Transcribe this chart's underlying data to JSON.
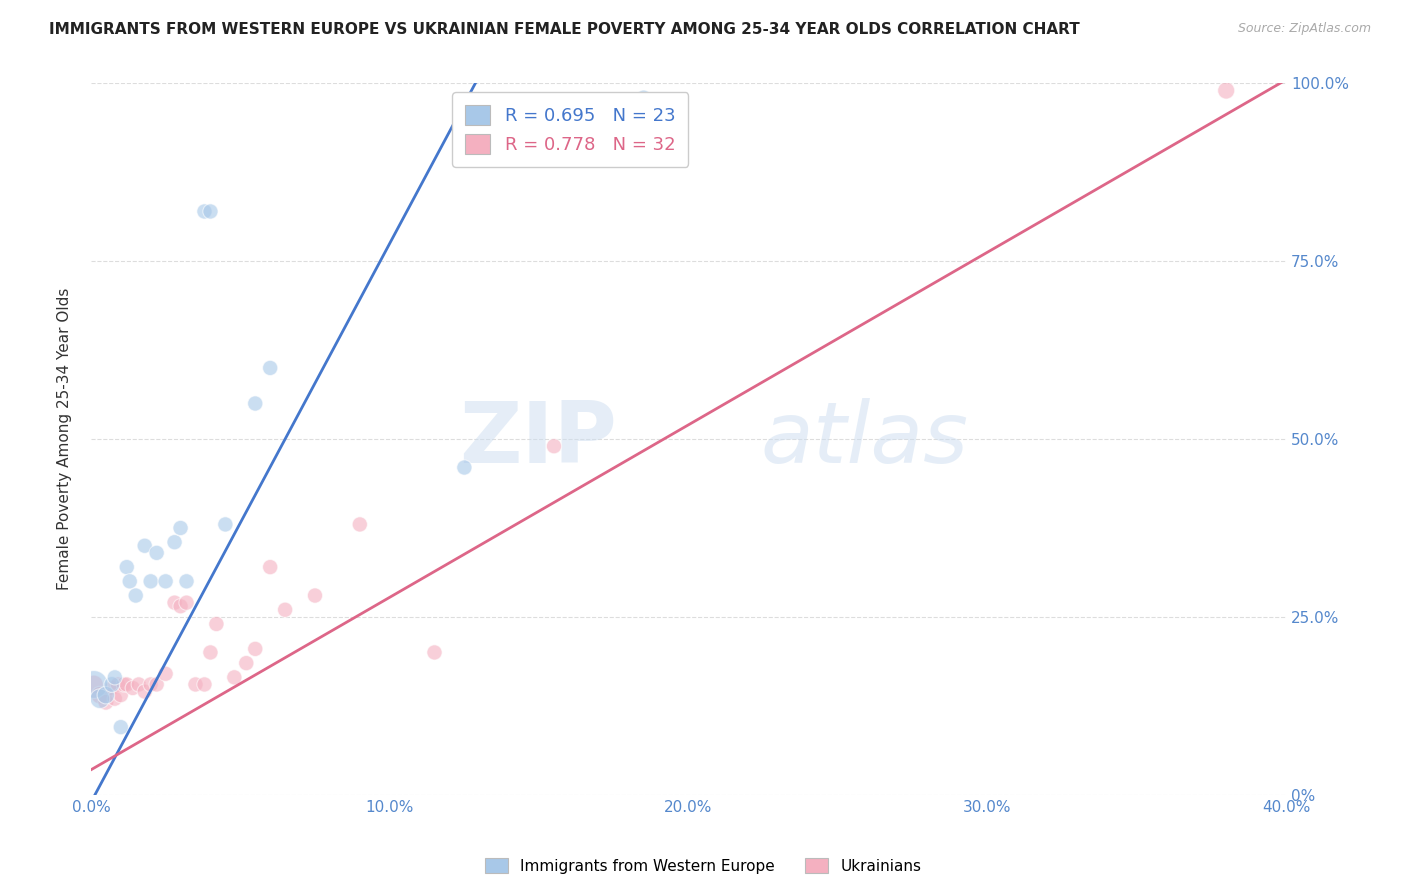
{
  "title": "IMMIGRANTS FROM WESTERN EUROPE VS UKRAINIAN FEMALE POVERTY AMONG 25-34 YEAR OLDS CORRELATION CHART",
  "source": "Source: ZipAtlas.com",
  "ylabel": "Female Poverty Among 25-34 Year Olds",
  "xlim": [
    0.0,
    0.4
  ],
  "ylim": [
    0.0,
    1.0
  ],
  "xtick_labels": [
    "0.0%",
    "10.0%",
    "20.0%",
    "30.0%",
    "40.0%"
  ],
  "xtick_vals": [
    0.0,
    0.1,
    0.2,
    0.3,
    0.4
  ],
  "ytick_labels_right": [
    "0%",
    "25.0%",
    "50.0%",
    "75.0%",
    "100.0%"
  ],
  "ytick_vals": [
    0.0,
    0.25,
    0.5,
    0.75,
    1.0
  ],
  "blue_R": 0.695,
  "blue_N": 23,
  "pink_R": 0.778,
  "pink_N": 32,
  "blue_color": "#a8c8e8",
  "pink_color": "#f4b0c0",
  "blue_line_color": "#4477cc",
  "pink_line_color": "#dd6688",
  "legend_label_blue": "Immigrants from Western Europe",
  "legend_label_pink": "Ukrainians",
  "watermark_zip": "ZIP",
  "watermark_atlas": "atlas",
  "blue_scatter_x": [
    0.001,
    0.003,
    0.005,
    0.007,
    0.008,
    0.01,
    0.012,
    0.013,
    0.015,
    0.018,
    0.02,
    0.022,
    0.025,
    0.028,
    0.03,
    0.032,
    0.038,
    0.04,
    0.045,
    0.055,
    0.06,
    0.125,
    0.185
  ],
  "blue_scatter_y": [
    0.155,
    0.135,
    0.14,
    0.155,
    0.165,
    0.095,
    0.32,
    0.3,
    0.28,
    0.35,
    0.3,
    0.34,
    0.3,
    0.355,
    0.375,
    0.3,
    0.82,
    0.82,
    0.38,
    0.55,
    0.6,
    0.46,
    0.98
  ],
  "blue_scatter_size": [
    400,
    200,
    160,
    130,
    120,
    120,
    120,
    120,
    120,
    120,
    120,
    120,
    120,
    120,
    120,
    120,
    120,
    120,
    120,
    120,
    120,
    120,
    120
  ],
  "pink_scatter_x": [
    0.001,
    0.003,
    0.005,
    0.007,
    0.008,
    0.009,
    0.01,
    0.011,
    0.012,
    0.014,
    0.016,
    0.018,
    0.02,
    0.022,
    0.025,
    0.028,
    0.03,
    0.032,
    0.035,
    0.038,
    0.04,
    0.042,
    0.048,
    0.052,
    0.055,
    0.06,
    0.065,
    0.075,
    0.09,
    0.115,
    0.155,
    0.38
  ],
  "pink_scatter_y": [
    0.155,
    0.14,
    0.13,
    0.15,
    0.135,
    0.155,
    0.14,
    0.155,
    0.155,
    0.15,
    0.155,
    0.145,
    0.155,
    0.155,
    0.17,
    0.27,
    0.265,
    0.27,
    0.155,
    0.155,
    0.2,
    0.24,
    0.165,
    0.185,
    0.205,
    0.32,
    0.26,
    0.28,
    0.38,
    0.2,
    0.49,
    0.99
  ],
  "pink_scatter_size": [
    180,
    160,
    130,
    120,
    120,
    120,
    120,
    120,
    120,
    120,
    120,
    120,
    120,
    120,
    120,
    120,
    120,
    120,
    120,
    120,
    120,
    120,
    120,
    120,
    120,
    120,
    120,
    120,
    120,
    120,
    120,
    150
  ],
  "blue_line_x": [
    -0.005,
    0.135
  ],
  "blue_line_y": [
    -0.05,
    1.05
  ],
  "pink_line_x": [
    0.0,
    0.4
  ],
  "pink_line_y": [
    0.035,
    1.005
  ],
  "background_color": "#ffffff",
  "grid_color": "#dddddd"
}
